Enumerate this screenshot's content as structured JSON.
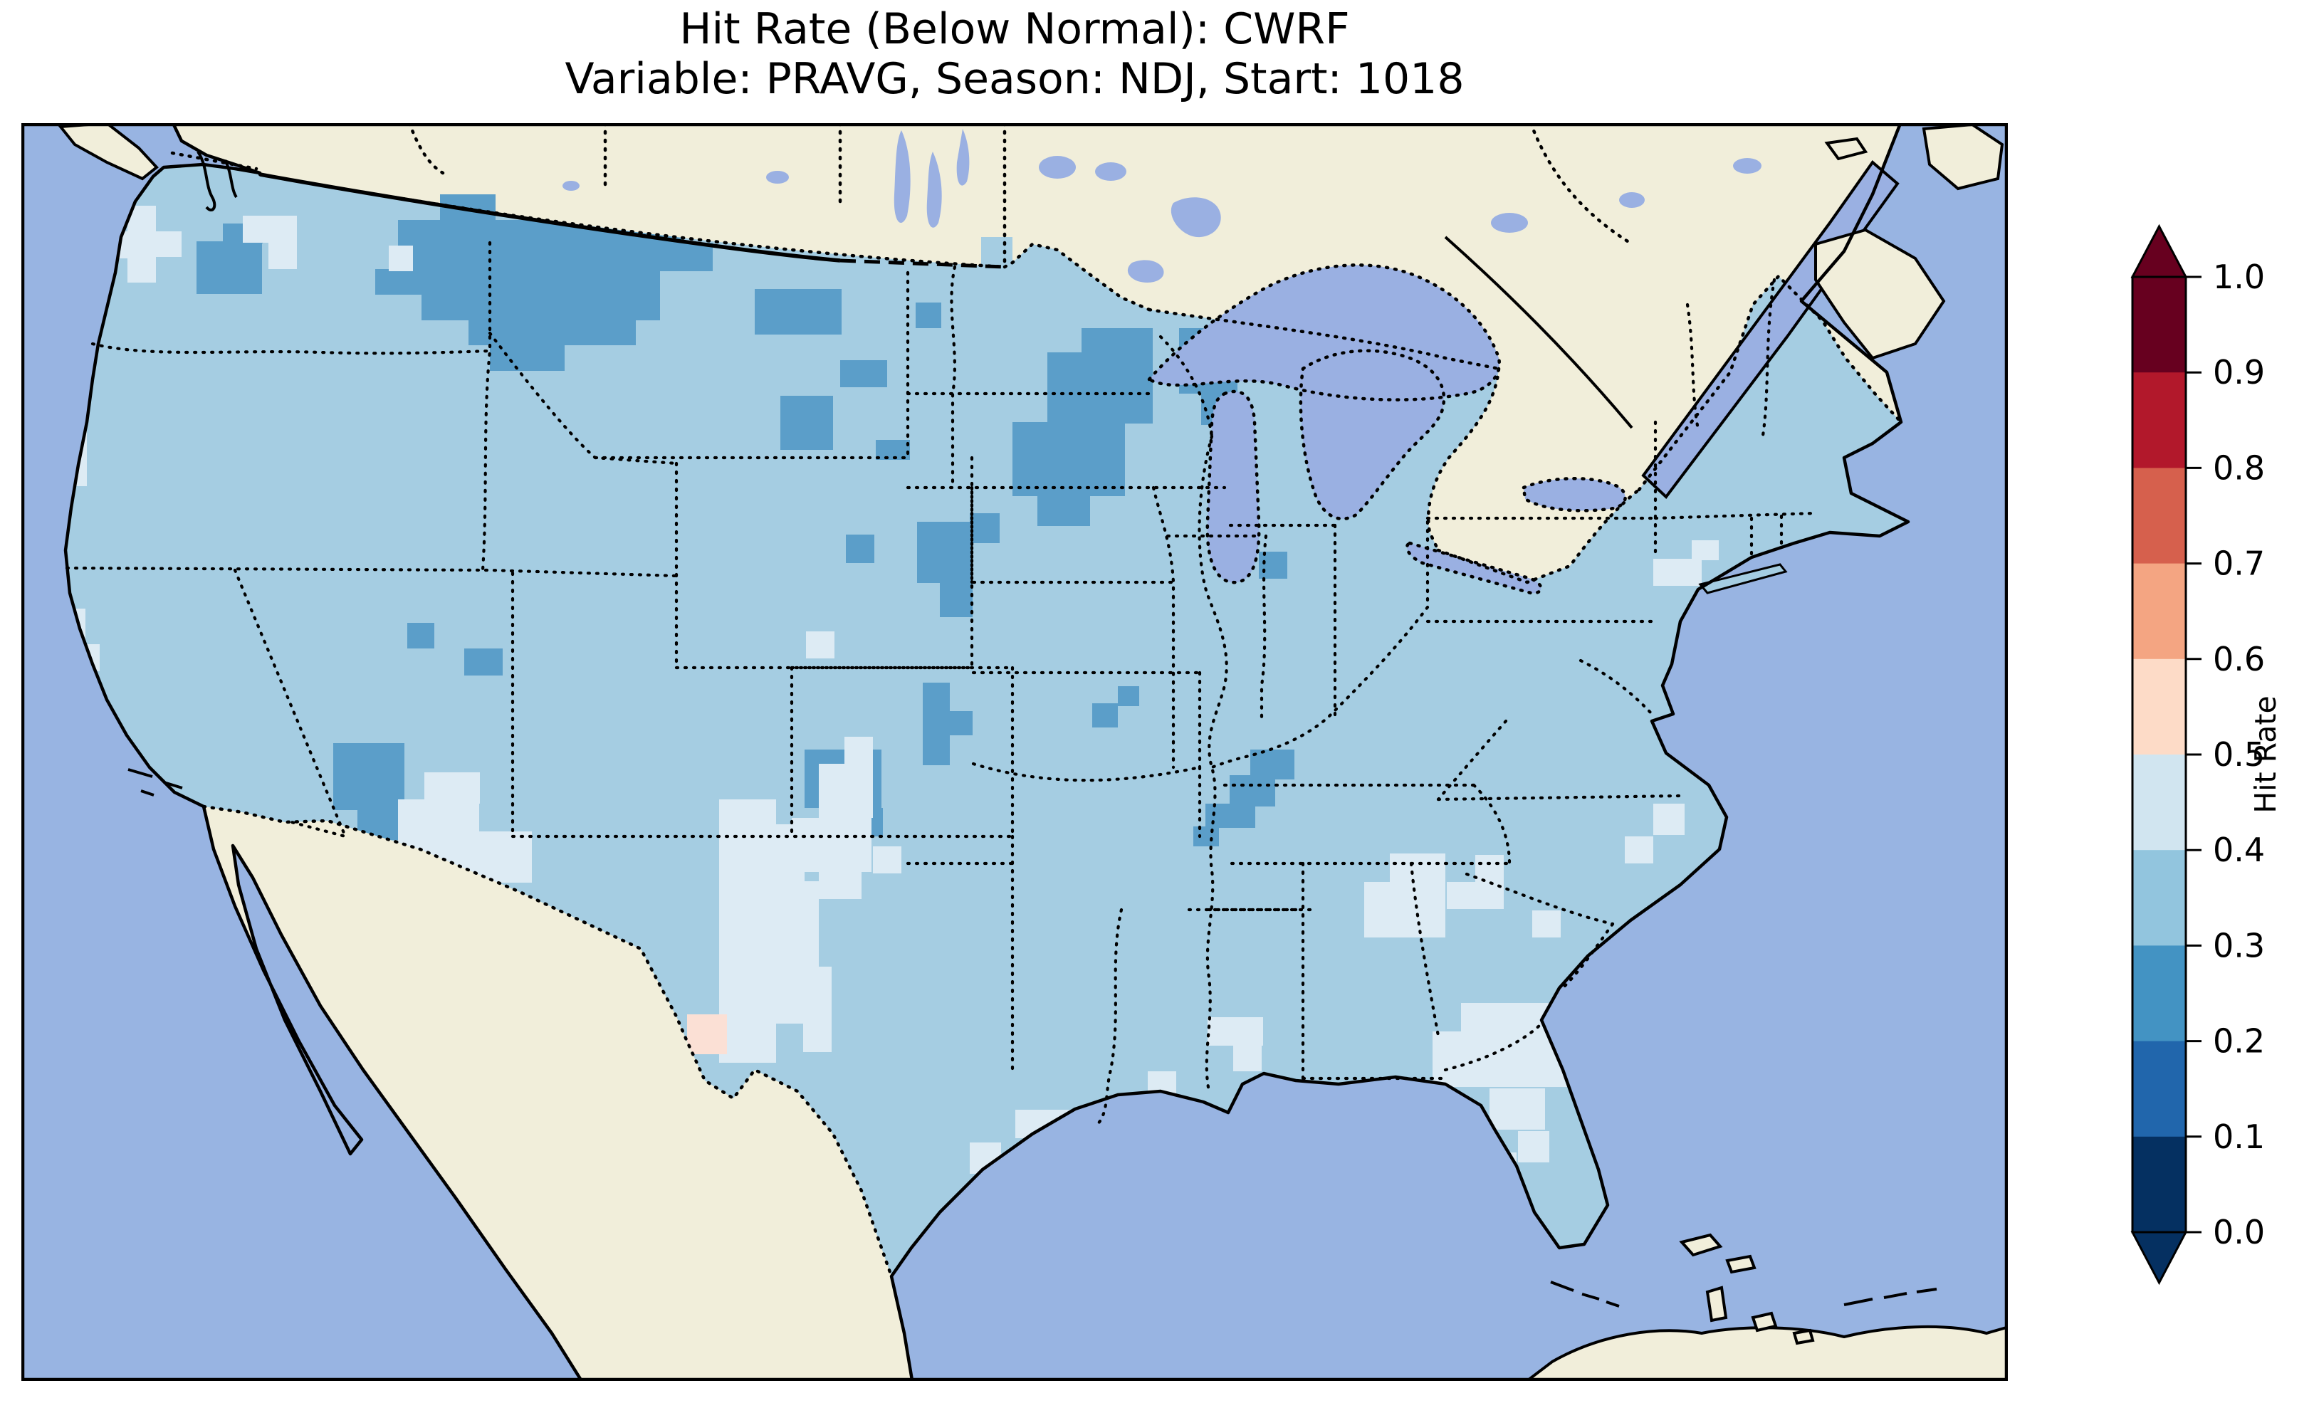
{
  "title": {
    "line1": "Hit Rate (Below Normal): CWRF",
    "line2": "Variable: PRAVG, Season: NDJ, Start: 1018"
  },
  "colorbar": {
    "label": "Hit Rate",
    "ticks": [
      "1.0",
      "0.9",
      "0.8",
      "0.7",
      "0.6",
      "0.5",
      "0.4",
      "0.3",
      "0.2",
      "0.1",
      "0.0"
    ],
    "bin_colors_top_to_bottom": [
      "#67001f",
      "#b2182b",
      "#d6604d",
      "#f4a582",
      "#fddbc7",
      "#d1e5f0",
      "#92c5de",
      "#4393c3",
      "#2166ac",
      "#053061"
    ],
    "extend_over_color": "#67001f",
    "extend_under_color": "#053061"
  },
  "map": {
    "colors": {
      "ocean": "#98b4e2",
      "land": "#f1eeda",
      "lakes": "#9ab0e2",
      "base_cell": "#a5cde2",
      "dark_cell": "#5b9ec9",
      "light_cell": "#ddebf4",
      "pink_cell": "#fbe0d5",
      "coast": "#000000"
    },
    "patches": [
      {
        "bin": "0.2-0.3",
        "color_key": "dark_cell",
        "rects": [
          [
            529,
            136,
            400,
            72
          ],
          [
            562,
            205,
            335,
            72
          ],
          [
            628,
            274,
            235,
            38
          ],
          [
            658,
            312,
            105,
            36
          ],
          [
            905,
            168,
            66,
            40
          ],
          [
            497,
            205,
            68,
            36
          ],
          [
            246,
            166,
            92,
            74
          ],
          [
            283,
            141,
            56,
            28
          ],
          [
            1256,
            252,
            36,
            36
          ],
          [
            1030,
            233,
            122,
            64
          ],
          [
            1150,
            333,
            66,
            38
          ],
          [
            1066,
            383,
            74,
            76
          ],
          [
            1200,
            445,
            48,
            28
          ],
          [
            1258,
            560,
            78,
            86
          ],
          [
            1290,
            644,
            46,
            50
          ],
          [
            1158,
            578,
            40,
            40
          ],
          [
            1489,
            288,
            100,
            66
          ],
          [
            1441,
            322,
            148,
            100
          ],
          [
            1392,
            420,
            158,
            104
          ],
          [
            1427,
            522,
            74,
            44
          ],
          [
            1332,
            548,
            42,
            42
          ],
          [
            1626,
            288,
            82,
            92
          ],
          [
            1657,
            378,
            48,
            46
          ],
          [
            1738,
            602,
            40,
            38
          ],
          [
            1504,
            815,
            36,
            34
          ],
          [
            1540,
            791,
            30,
            28
          ],
          [
            1726,
            880,
            62,
            42
          ],
          [
            1697,
            916,
            64,
            44
          ],
          [
            1663,
            956,
            70,
            34
          ],
          [
            1646,
            988,
            36,
            28
          ],
          [
            1266,
            786,
            38,
            116
          ],
          [
            1302,
            826,
            34,
            34
          ],
          [
            1100,
            880,
            108,
            82
          ],
          [
            1138,
            962,
            72,
            40
          ],
          [
            438,
            871,
            100,
            94
          ],
          [
            472,
            963,
            66,
            44
          ],
          [
            622,
            738,
            54,
            38
          ],
          [
            542,
            702,
            38,
            36
          ]
        ]
      },
      {
        "bin": "0.4-0.5",
        "color_key": "light_cell",
        "rects": [
          [
            149,
            116,
            40,
            108
          ],
          [
            117,
            152,
            34,
            38
          ],
          [
            187,
            152,
            38,
            36
          ],
          [
            311,
            130,
            76,
            38
          ],
          [
            347,
            167,
            40,
            38
          ],
          [
            516,
            172,
            34,
            36
          ],
          [
            48,
            382,
            44,
            128
          ],
          [
            34,
            482,
            34,
            58
          ],
          [
            40,
            682,
            50,
            88
          ],
          [
            70,
            732,
            40,
            38
          ],
          [
            529,
            950,
            114,
            150
          ],
          [
            566,
            912,
            78,
            44
          ],
          [
            643,
            995,
            74,
            72
          ],
          [
            600,
            1100,
            78,
            44
          ],
          [
            1120,
            900,
            76,
            76
          ],
          [
            1156,
            862,
            40,
            40
          ],
          [
            1082,
            976,
            112,
            76
          ],
          [
            1196,
            1016,
            40,
            38
          ],
          [
            980,
            950,
            80,
            370
          ],
          [
            1020,
            985,
            80,
            240
          ],
          [
            1060,
            1065,
            60,
            120
          ],
          [
            1058,
            1185,
            80,
            80
          ],
          [
            1098,
            1265,
            40,
            40
          ],
          [
            1120,
            1030,
            60,
            60
          ],
          [
            1102,
            714,
            40,
            38
          ],
          [
            1666,
            1256,
            78,
            40
          ],
          [
            1702,
            1296,
            40,
            36
          ],
          [
            1582,
            1332,
            40,
            36
          ],
          [
            1396,
            1386,
            78,
            40
          ],
          [
            1332,
            1432,
            44,
            44
          ],
          [
            1922,
            1026,
            78,
            118
          ],
          [
            1886,
            1066,
            38,
            78
          ],
          [
            2002,
            1066,
            40,
            38
          ],
          [
            2042,
            1028,
            40,
            76
          ],
          [
            2122,
            1106,
            40,
            38
          ],
          [
            2292,
            956,
            44,
            44
          ],
          [
            2252,
            1002,
            40,
            38
          ],
          [
            2022,
            1236,
            158,
            118
          ],
          [
            2062,
            1356,
            78,
            58
          ],
          [
            2102,
            1416,
            44,
            44
          ],
          [
            1982,
            1276,
            44,
            78
          ],
          [
            2032,
            1446,
            68,
            38
          ],
          [
            2096,
            1546,
            38,
            34
          ],
          [
            2032,
            1546,
            34,
            34
          ],
          [
            2292,
            612,
            68,
            38
          ],
          [
            2346,
            586,
            38,
            28
          ]
        ]
      },
      {
        "bin": "0.5-0.6",
        "color_key": "pink_cell",
        "rects": [
          [
            935,
            1252,
            56,
            56
          ]
        ]
      }
    ]
  },
  "chart_data": {
    "type": "heatmap",
    "title": "Hit Rate (Below Normal): CWRF",
    "subtitle": "Variable: PRAVG, Season: NDJ, Start: 1018",
    "model": "CWRF",
    "category": "Below Normal",
    "variable": "PRAVG",
    "season": "NDJ",
    "start": "1018",
    "region": "Continental United States (with surrounding Canada, Mexico, Atlantic, Pacific, Gulf of Mexico)",
    "colorbar_label": "Hit Rate",
    "value_range": [
      0.0,
      1.0
    ],
    "tick_step": 0.1,
    "colormap": "RdBu_r, 10 discrete bins, extend both ends",
    "colormap_bins": [
      {
        "range": [
          0.0,
          0.1
        ],
        "color": "#053061"
      },
      {
        "range": [
          0.1,
          0.2
        ],
        "color": "#2166ac"
      },
      {
        "range": [
          0.2,
          0.3
        ],
        "color": "#4393c3"
      },
      {
        "range": [
          0.3,
          0.4
        ],
        "color": "#92c5de"
      },
      {
        "range": [
          0.4,
          0.5
        ],
        "color": "#d1e5f0"
      },
      {
        "range": [
          0.5,
          0.6
        ],
        "color": "#fddbc7"
      },
      {
        "range": [
          0.6,
          0.7
        ],
        "color": "#f4a582"
      },
      {
        "range": [
          0.7,
          0.8
        ],
        "color": "#d6604d"
      },
      {
        "range": [
          0.8,
          0.9
        ],
        "color": "#b2182b"
      },
      {
        "range": [
          0.9,
          1.0
        ],
        "color": "#67001f"
      }
    ],
    "dominant_value_bin": [
      0.3,
      0.4
    ],
    "notable_regions": [
      {
        "name": "central/eastern Montana",
        "hit_rate_bin": [
          0.2,
          0.3
        ]
      },
      {
        "name": "western Montana / Idaho panhandle",
        "hit_rate_bin": [
          0.2,
          0.3
        ]
      },
      {
        "name": "northern Wisconsin and western Lower Michigan",
        "hit_rate_bin": [
          0.2,
          0.3
        ]
      },
      {
        "name": "South Dakota and eastern Nebraska patches",
        "hit_rate_bin": [
          0.2,
          0.3
        ]
      },
      {
        "name": "Nevada, southeastern Utah and western Colorado patches",
        "hit_rate_bin": [
          0.2,
          0.3
        ]
      },
      {
        "name": "Kentucky/Tennessee border near Nashville",
        "hit_rate_bin": [
          0.2,
          0.3
        ]
      },
      {
        "name": "Washington coast and Cascades spots",
        "hit_rate_bin": [
          0.4,
          0.5
        ]
      },
      {
        "name": "Four Corners (northern Arizona / southern Utah)",
        "hit_rate_bin": [
          0.4,
          0.5
        ]
      },
      {
        "name": "eastern New Mexico / West Texas plains",
        "hit_rate_bin": [
          0.4,
          0.5
        ]
      },
      {
        "name": "Georgia / South Carolina and northern Florida",
        "hit_rate_bin": [
          0.4,
          0.5
        ]
      },
      {
        "name": "Big Bend, Texas-Mexico border",
        "hit_rate_bin": [
          0.5,
          0.6
        ]
      }
    ]
  }
}
